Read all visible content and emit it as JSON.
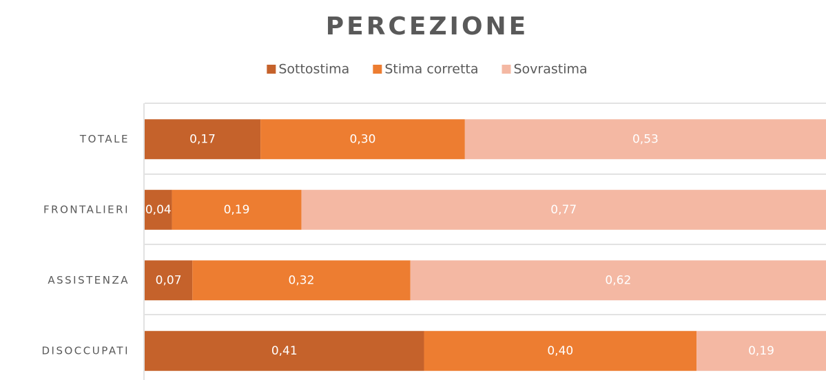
{
  "chart_data": {
    "type": "bar",
    "stacked": true,
    "orientation": "horizontal",
    "title": "PERCEZIONE",
    "categories": [
      "TOTALE",
      "FRONTALIERI",
      "ASSISTENZA",
      "DISOCCUPATI"
    ],
    "xlim": [
      0,
      1
    ],
    "series": [
      {
        "name": "Sottostima",
        "color": "#c5622b",
        "values": [
          0.17,
          0.04,
          0.07,
          0.41
        ],
        "value_labels": [
          "0,17",
          "0,04",
          "0,07",
          "0,41"
        ]
      },
      {
        "name": "Stima corretta",
        "color": "#ed7d31",
        "values": [
          0.3,
          0.19,
          0.32,
          0.4
        ],
        "value_labels": [
          "0,30",
          "0,19",
          "0,32",
          "0,40"
        ]
      },
      {
        "name": "Sovrastima",
        "color": "#f4b8a3",
        "values": [
          0.53,
          0.77,
          0.62,
          0.19
        ],
        "value_labels": [
          "0,53",
          "0,77",
          "0,62",
          "0,19"
        ]
      }
    ],
    "legend": "top"
  }
}
